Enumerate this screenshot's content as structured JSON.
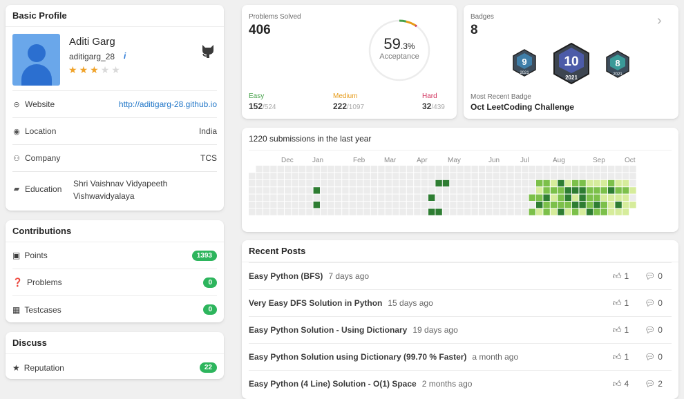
{
  "profile": {
    "header": "Basic Profile",
    "name": "Aditi Garg",
    "username": "aditigarg_28",
    "info_icon_text": "i",
    "stars": 3,
    "max_stars": 5,
    "rows": [
      {
        "label": "Website",
        "value": "http://aditigarg-28.github.io",
        "icon": "link-icon"
      },
      {
        "label": "Location",
        "value": "India",
        "icon": "globe-icon"
      },
      {
        "label": "Company",
        "value": "TCS",
        "icon": "users-icon"
      }
    ],
    "education_label": "Education",
    "education_line1": "Shri Vaishnav Vidyapeeth",
    "education_line2": "Vishwavidyalaya"
  },
  "contributions": {
    "header": "Contributions",
    "items": [
      {
        "label": "Points",
        "value": "1393"
      },
      {
        "label": "Problems",
        "value": "0"
      },
      {
        "label": "Testcases",
        "value": "0"
      }
    ]
  },
  "discuss": {
    "header": "Discuss",
    "reputation_label": "Reputation",
    "reputation_value": "22"
  },
  "solved": {
    "label": "Problems Solved",
    "total": "406",
    "acceptance_int": "59",
    "acceptance_dec": ".3%",
    "acceptance_label": "Acceptance",
    "acceptance_fraction": 0.593,
    "easy": {
      "label": "Easy",
      "solved": "152",
      "total": "/524",
      "color": "#43a047"
    },
    "medium": {
      "label": "Medium",
      "solved": "222",
      "total": "/1097",
      "color": "#e69a17"
    },
    "hard": {
      "label": "Hard",
      "solved": "32",
      "total": "/439",
      "color": "#d1315c"
    }
  },
  "badges": {
    "label": "Badges",
    "count": "8",
    "items": [
      {
        "num": "9",
        "year": "2021",
        "color": "#3f7ea8"
      },
      {
        "num": "10",
        "year": "2021",
        "color": "#4c5ba8"
      },
      {
        "num": "8",
        "year": "2021",
        "color": "#3a9a98"
      }
    ],
    "recent_label": "Most Recent Badge",
    "recent_name": "Oct LeetCoding Challenge"
  },
  "heatmap": {
    "title": "1220 submissions in the last year",
    "months": [
      "Dec",
      "Jan",
      "Feb",
      "Mar",
      "Apr",
      "May",
      "Jun",
      "Jul",
      "Aug",
      "Sep",
      "Oct"
    ],
    "levels": {
      "7": [
        0,
        0,
        0,
        0,
        0,
        0,
        0,
        0,
        0,
        0,
        0,
        0,
        0,
        0,
        0,
        0,
        0,
        0,
        0,
        0,
        0,
        0,
        0,
        0,
        0,
        0,
        1,
        0,
        0,
        0,
        0,
        0,
        0,
        0,
        0,
        0,
        0,
        0,
        0,
        0,
        0,
        0,
        2,
        2,
        2,
        3,
        3,
        3,
        3,
        3,
        2,
        3,
        2,
        2,
        1
      ],
      "5": [
        0,
        0,
        0,
        0,
        0,
        0,
        0,
        0,
        0,
        3,
        0,
        0,
        0,
        0,
        0,
        0,
        0,
        0,
        0,
        0,
        0,
        0,
        0,
        0,
        0,
        0,
        0,
        0,
        0,
        0,
        0,
        0,
        0,
        0,
        0,
        0,
        0,
        0,
        0,
        0,
        3,
        2,
        2,
        2,
        2,
        3,
        3,
        2,
        3,
        2,
        1,
        3,
        1,
        1
      ],
      "3": [
        0,
        0,
        0,
        0,
        0,
        0,
        0,
        0,
        0,
        3,
        0,
        0,
        0,
        0,
        0,
        0,
        0,
        0,
        0,
        0,
        0,
        0,
        0,
        0,
        0,
        0,
        0,
        0,
        0,
        0,
        0,
        0,
        0,
        0,
        0,
        0,
        0,
        0,
        0,
        0,
        1,
        2,
        2,
        2,
        3,
        3,
        3,
        2,
        2,
        2,
        3,
        2,
        2,
        1
      ],
      "2": [
        0,
        0,
        0,
        0,
        0,
        0,
        0,
        0,
        0,
        0,
        0,
        0,
        0,
        0,
        0,
        0,
        0,
        0,
        0,
        0,
        0,
        0,
        0,
        0,
        0,
        0,
        3,
        3,
        0,
        0,
        0,
        0,
        0,
        0,
        0,
        0,
        0,
        0,
        0,
        0,
        2,
        2,
        1,
        3,
        1,
        2,
        2,
        1,
        1,
        1,
        2,
        1,
        1
      ],
      "4": [
        0,
        0,
        0,
        0,
        0,
        0,
        0,
        0,
        0,
        0,
        0,
        0,
        0,
        0,
        0,
        0,
        0,
        0,
        0,
        0,
        0,
        0,
        0,
        0,
        0,
        3,
        0,
        0,
        0,
        0,
        0,
        0,
        0,
        0,
        0,
        0,
        0,
        0,
        0,
        2,
        2,
        3,
        1,
        2,
        3,
        1,
        3,
        2,
        2,
        1,
        1,
        1,
        1
      ],
      "6": [
        0,
        0,
        0,
        0,
        0,
        0,
        0,
        0,
        0,
        0,
        0,
        0,
        0,
        0,
        0,
        0,
        0,
        0,
        0,
        0,
        0,
        0,
        0,
        0,
        0,
        3,
        3,
        0,
        0,
        0,
        0,
        0,
        0,
        0,
        0,
        0,
        0,
        0,
        0,
        2,
        1,
        2,
        1,
        3,
        1,
        2,
        1,
        3,
        2,
        2,
        1,
        1,
        1
      ]
    }
  },
  "posts": {
    "header": "Recent Posts",
    "items": [
      {
        "title": "Easy Python (BFS)",
        "ago": "7 days ago",
        "likes": "1",
        "comments": "0"
      },
      {
        "title": "Very Easy DFS Solution in Python",
        "ago": "15 days ago",
        "likes": "1",
        "comments": "0"
      },
      {
        "title": "Easy Python Solution - Using Dictionary",
        "ago": "19 days ago",
        "likes": "1",
        "comments": "0"
      },
      {
        "title": "Easy Python Solution using Dictionary (99.70 % Faster)",
        "ago": "a month ago",
        "likes": "1",
        "comments": "0"
      },
      {
        "title": "Easy Python (4 Line) Solution - O(1) Space",
        "ago": "2 months ago",
        "likes": "4",
        "comments": "2"
      }
    ]
  }
}
